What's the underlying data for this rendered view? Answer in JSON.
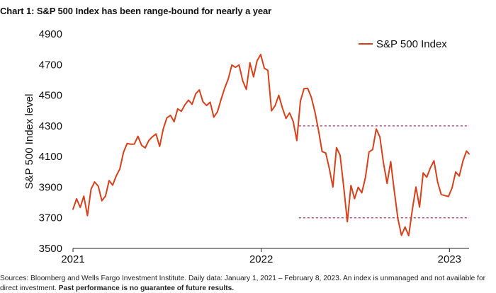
{
  "chart_data": {
    "type": "line",
    "title": "Chart 1: S&P 500 Index has been range-bound for nearly a year",
    "ylabel": "S&P 500 Index level",
    "xlabel": "",
    "ylim": [
      3500,
      4900
    ],
    "xlim": [
      "2021-01-01",
      "2023-02-08"
    ],
    "yticks": [
      3500,
      3700,
      3900,
      4100,
      4300,
      4500,
      4700,
      4900
    ],
    "xticks": [
      "2021",
      "2022",
      "2023"
    ],
    "legend": {
      "position": "top-right",
      "entries": [
        "S&P 500 Index"
      ]
    },
    "colors": {
      "series": "#d7401b",
      "reference": "#a0306e"
    },
    "reference_lines": [
      {
        "value": 4300,
        "from": "2022-03-15",
        "to": "2023-02-08",
        "style": "dashed"
      },
      {
        "value": 3700,
        "from": "2022-03-15",
        "to": "2023-02-08",
        "style": "dashed"
      }
    ],
    "series": [
      {
        "name": "S&P 500 Index",
        "x": [
          "2021-01-01",
          "2021-01-08",
          "2021-01-15",
          "2021-01-22",
          "2021-01-29",
          "2021-02-05",
          "2021-02-12",
          "2021-02-19",
          "2021-02-26",
          "2021-03-05",
          "2021-03-12",
          "2021-03-19",
          "2021-03-26",
          "2021-04-02",
          "2021-04-09",
          "2021-04-16",
          "2021-04-23",
          "2021-04-30",
          "2021-05-07",
          "2021-05-14",
          "2021-05-21",
          "2021-05-28",
          "2021-06-04",
          "2021-06-11",
          "2021-06-18",
          "2021-06-25",
          "2021-07-02",
          "2021-07-09",
          "2021-07-16",
          "2021-07-23",
          "2021-07-30",
          "2021-08-06",
          "2021-08-13",
          "2021-08-20",
          "2021-08-27",
          "2021-09-03",
          "2021-09-10",
          "2021-09-17",
          "2021-09-24",
          "2021-10-01",
          "2021-10-08",
          "2021-10-15",
          "2021-10-22",
          "2021-10-29",
          "2021-11-05",
          "2021-11-12",
          "2021-11-19",
          "2021-11-26",
          "2021-12-03",
          "2021-12-10",
          "2021-12-17",
          "2021-12-24",
          "2021-12-31",
          "2022-01-07",
          "2022-01-14",
          "2022-01-21",
          "2022-01-28",
          "2022-02-04",
          "2022-02-11",
          "2022-02-18",
          "2022-02-25",
          "2022-03-04",
          "2022-03-11",
          "2022-03-18",
          "2022-03-25",
          "2022-04-01",
          "2022-04-08",
          "2022-04-15",
          "2022-04-22",
          "2022-04-29",
          "2022-05-06",
          "2022-05-13",
          "2022-05-20",
          "2022-05-27",
          "2022-06-03",
          "2022-06-10",
          "2022-06-17",
          "2022-06-24",
          "2022-07-01",
          "2022-07-08",
          "2022-07-15",
          "2022-07-22",
          "2022-07-29",
          "2022-08-05",
          "2022-08-12",
          "2022-08-19",
          "2022-08-26",
          "2022-09-02",
          "2022-09-09",
          "2022-09-16",
          "2022-09-23",
          "2022-09-30",
          "2022-10-07",
          "2022-10-14",
          "2022-10-21",
          "2022-10-28",
          "2022-11-04",
          "2022-11-11",
          "2022-11-18",
          "2022-11-25",
          "2022-12-02",
          "2022-12-09",
          "2022-12-16",
          "2022-12-23",
          "2022-12-30",
          "2023-01-06",
          "2023-01-13",
          "2023-01-20",
          "2023-01-27",
          "2023-02-03",
          "2023-02-08"
        ],
        "values": [
          3756,
          3824,
          3768,
          3841,
          3714,
          3887,
          3934,
          3906,
          3811,
          3842,
          3943,
          3913,
          3974,
          4020,
          4128,
          4185,
          4180,
          4181,
          4232,
          4173,
          4156,
          4204,
          4229,
          4247,
          4166,
          4280,
          4352,
          4369,
          4327,
          4411,
          4395,
          4437,
          4468,
          4441,
          4509,
          4535,
          4458,
          4433,
          4455,
          4357,
          4391,
          4471,
          4545,
          4605,
          4697,
          4682,
          4698,
          4595,
          4538,
          4712,
          4620,
          4725,
          4766,
          4677,
          4662,
          4398,
          4432,
          4500,
          4418,
          4349,
          4385,
          4329,
          4204,
          4463,
          4543,
          4545,
          4488,
          4392,
          4271,
          4132,
          4123,
          4023,
          3901,
          4158,
          4108,
          3901,
          3674,
          3911,
          3825,
          3899,
          3863,
          3962,
          4130,
          4145,
          4280,
          4228,
          4058,
          3924,
          4067,
          3873,
          3693,
          3585,
          3640,
          3583,
          3752,
          3901,
          3770,
          3993,
          3965,
          4026,
          4072,
          3934,
          3852,
          3845,
          3839,
          3895,
          3999,
          3972,
          4070,
          4136,
          4117
        ]
      }
    ]
  },
  "source_note": "Sources: Bloomberg and Wells Fargo Investment Institute. Daily data: January 1, 2021 – February 8, 2023. An index is unmanaged and not available for direct investment.",
  "disclaimer": "Past performance is no guarantee of future results."
}
